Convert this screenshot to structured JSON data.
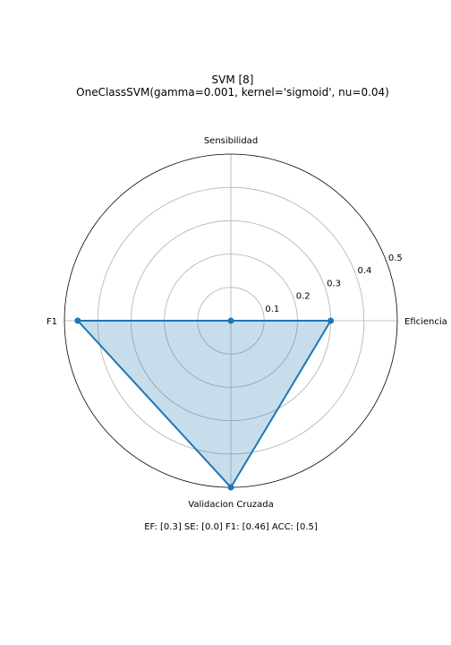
{
  "title": "SVM [8]",
  "subtitle": "OneClassSVM(gamma=0.001, kernel='sigmoid', nu=0.04)",
  "footer_text": "EF: [0.3] SE: [0.0] F1: [0.46] ACC: [0.5]",
  "colors": {
    "line": "#1f77b4",
    "fill": "#1f77b4",
    "grid": "#b0b0b0",
    "frame": "#000000"
  },
  "chart_data": {
    "type": "radar",
    "categories": [
      "Eficiencia",
      "Sensibilidad",
      "F1",
      "Validacion Cruzada"
    ],
    "values": [
      0.3,
      0.0,
      0.46,
      0.5
    ],
    "radial_ticks": [
      0.1,
      0.2,
      0.3,
      0.4,
      0.5
    ],
    "rlim": [
      0,
      0.5
    ],
    "grid": true,
    "fill_opacity": 0.25
  }
}
